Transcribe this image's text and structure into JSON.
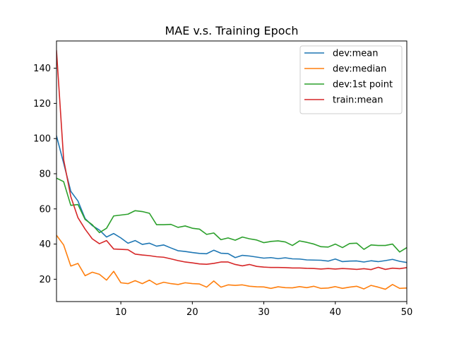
{
  "chart_data": {
    "type": "line",
    "title": "MAE v.s. Training Epoch",
    "xlabel": "",
    "ylabel": "",
    "xlim": [
      1,
      50
    ],
    "ylim": [
      7.3,
      155.5
    ],
    "xticks": [
      10,
      20,
      30,
      40,
      50
    ],
    "yticks": [
      20,
      40,
      60,
      80,
      100,
      120,
      140
    ],
    "legend_position": "top-right",
    "x": [
      1,
      2,
      3,
      4,
      5,
      6,
      7,
      8,
      9,
      10,
      11,
      12,
      13,
      14,
      15,
      16,
      17,
      18,
      19,
      20,
      21,
      22,
      23,
      24,
      25,
      26,
      27,
      28,
      29,
      30,
      31,
      32,
      33,
      34,
      35,
      36,
      37,
      38,
      39,
      40,
      41,
      42,
      43,
      44,
      45,
      46,
      47,
      48,
      49,
      50
    ],
    "series": [
      {
        "name": "dev:mean",
        "color": "#1f77b4",
        "values": [
          101.5,
          86.0,
          70.0,
          64.5,
          54.5,
          50.5,
          48.0,
          44.0,
          46.0,
          43.5,
          40.5,
          42.0,
          39.8,
          40.5,
          38.8,
          39.5,
          37.8,
          36.2,
          35.8,
          35.2,
          34.7,
          34.5,
          36.5,
          34.8,
          34.6,
          32.3,
          33.6,
          33.2,
          32.6,
          32.0,
          32.3,
          31.7,
          32.2,
          31.6,
          31.5,
          31.0,
          30.9,
          30.8,
          30.3,
          31.5,
          30.0,
          30.3,
          30.4,
          29.8,
          30.5,
          30.0,
          30.6,
          31.3,
          30.2,
          29.5
        ]
      },
      {
        "name": "dev:median",
        "color": "#ff7f0e",
        "values": [
          45.0,
          39.5,
          27.5,
          29.0,
          22.0,
          24.0,
          22.8,
          19.5,
          24.5,
          18.0,
          17.5,
          19.2,
          17.5,
          19.5,
          17.0,
          18.3,
          17.5,
          17.0,
          18.0,
          17.5,
          17.3,
          15.5,
          19.0,
          15.5,
          16.8,
          16.5,
          16.8,
          16.0,
          15.7,
          15.6,
          14.8,
          15.7,
          15.2,
          15.1,
          15.8,
          15.2,
          16.0,
          14.8,
          15.0,
          15.8,
          14.8,
          15.5,
          16.0,
          14.5,
          16.5,
          15.5,
          14.3,
          17.0,
          14.8,
          15.0
        ]
      },
      {
        "name": "dev:1st point",
        "color": "#2ca02c",
        "values": [
          77.5,
          75.5,
          62.0,
          62.5,
          54.0,
          51.0,
          46.5,
          49.0,
          56.0,
          56.5,
          57.0,
          59.0,
          58.5,
          57.5,
          51.0,
          51.0,
          51.2,
          49.5,
          50.3,
          49.0,
          48.5,
          45.5,
          46.3,
          42.5,
          43.5,
          42.2,
          44.0,
          43.0,
          42.3,
          40.8,
          41.5,
          41.8,
          41.2,
          39.2,
          41.8,
          41.0,
          40.0,
          38.5,
          38.3,
          40.0,
          38.0,
          40.3,
          40.5,
          37.0,
          39.5,
          39.2,
          39.2,
          40.0,
          35.5,
          38.0
        ]
      },
      {
        "name": "train:mean",
        "color": "#d62728",
        "values": [
          150.0,
          88.0,
          67.0,
          55.0,
          48.5,
          43.0,
          40.2,
          42.0,
          37.2,
          37.0,
          36.8,
          34.3,
          33.8,
          33.4,
          32.8,
          32.5,
          31.6,
          30.6,
          29.8,
          29.3,
          28.7,
          28.5,
          29.0,
          29.8,
          29.8,
          28.4,
          27.6,
          28.4,
          27.3,
          26.9,
          26.7,
          26.7,
          26.6,
          26.4,
          26.4,
          26.2,
          26.1,
          25.8,
          26.1,
          25.8,
          26.1,
          25.9,
          25.6,
          26.0,
          25.5,
          26.8,
          25.6,
          26.3,
          26.0,
          26.6
        ]
      }
    ]
  }
}
